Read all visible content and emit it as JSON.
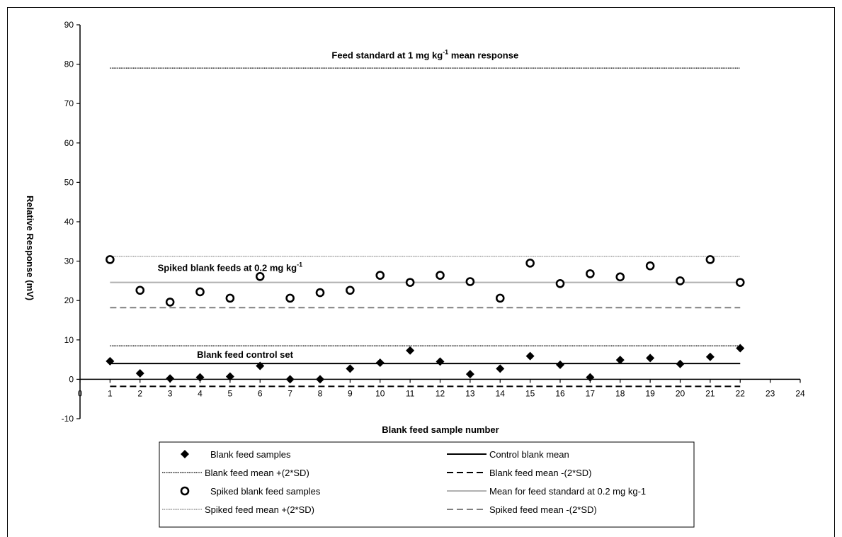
{
  "chart_data": {
    "type": "scatter",
    "xlabel": "Blank feed sample number",
    "ylabel": "Relative Response (mV)",
    "xlim": [
      0,
      24
    ],
    "ylim": [
      -10,
      90
    ],
    "x_ticks": [
      "0",
      "1",
      "2",
      "3",
      "4",
      "5",
      "6",
      "7",
      "8",
      "9",
      "10",
      "11",
      "12",
      "13",
      "14",
      "15",
      "16",
      "17",
      "18",
      "19",
      "20",
      "21",
      "22",
      "23",
      "24"
    ],
    "y_ticks": [
      "-10",
      "0",
      "10",
      "20",
      "30",
      "40",
      "50",
      "60",
      "70",
      "80",
      "90"
    ],
    "grid": false,
    "legend_position": "bottom",
    "series": [
      {
        "name": "Blank feed samples",
        "kind": "points",
        "marker": "diamond",
        "x": [
          1,
          2,
          3,
          4,
          5,
          6,
          7,
          8,
          9,
          10,
          11,
          12,
          13,
          14,
          15,
          16,
          17,
          18,
          19,
          20,
          21,
          22
        ],
        "y": [
          4.6,
          1.5,
          0.2,
          0.5,
          0.7,
          3.4,
          0.0,
          0.0,
          2.7,
          4.2,
          7.3,
          4.5,
          1.3,
          2.7,
          5.9,
          3.7,
          0.5,
          4.9,
          5.4,
          3.9,
          5.7,
          7.9
        ]
      },
      {
        "name": "Control blank mean",
        "kind": "line",
        "style": "solid-black",
        "x": [
          1,
          22
        ],
        "y": [
          4.0,
          4.0
        ]
      },
      {
        "name": "Blank feed mean +(2*SD)",
        "kind": "line",
        "style": "dotted-black",
        "x": [
          1,
          22
        ],
        "y": [
          8.5,
          8.5
        ]
      },
      {
        "name": "Blank feed mean -(2*SD)",
        "kind": "line",
        "style": "dashed-black",
        "x": [
          1,
          22
        ],
        "y": [
          -1.8,
          -1.8
        ]
      },
      {
        "name": "Spiked blank feed samples",
        "kind": "points",
        "marker": "circle",
        "x": [
          1,
          2,
          3,
          4,
          5,
          6,
          7,
          8,
          9,
          10,
          11,
          12,
          13,
          14,
          15,
          16,
          17,
          18,
          19,
          20,
          21,
          22
        ],
        "y": [
          30.4,
          22.6,
          19.6,
          22.2,
          20.6,
          26.1,
          20.6,
          22.0,
          22.6,
          26.4,
          24.6,
          26.4,
          24.8,
          20.6,
          29.5,
          24.3,
          26.8,
          26.0,
          28.8,
          25.0,
          30.4,
          24.6
        ]
      },
      {
        "name": "Mean for feed standard at 0.2 mg kg-1",
        "kind": "line",
        "style": "solid-gray",
        "x": [
          1,
          22
        ],
        "y": [
          24.6,
          24.6
        ]
      },
      {
        "name": "Spiked feed mean +(2*SD)",
        "kind": "line",
        "style": "dotted-gray",
        "x": [
          1,
          22
        ],
        "y": [
          31.2,
          31.2
        ]
      },
      {
        "name": "Spiked feed mean -(2*SD)",
        "kind": "line",
        "style": "dashed-gray",
        "x": [
          1,
          22
        ],
        "y": [
          18.2,
          18.2
        ]
      },
      {
        "name": "Feed standard mean response",
        "kind": "line",
        "style": "dotted-black",
        "x": [
          1,
          22
        ],
        "y": [
          79.0,
          79.0
        ]
      }
    ],
    "annotations": [
      {
        "text": "Feed standard  at 1 mg kg",
        "sup": "-1",
        "tail": " mean response",
        "x": 11.5,
        "y": 81.5
      },
      {
        "text": "Spiked blank feeds at 0.2 mg kg",
        "sup": "-1",
        "tail": "",
        "x": 5.0,
        "y": 27.5
      },
      {
        "text": "Blank feed control set",
        "sup": "",
        "tail": "",
        "x": 5.5,
        "y": 5.5
      }
    ],
    "colors": {
      "black": "#000000",
      "gray": "#b0b0b0",
      "dark_gray": "#808080"
    }
  }
}
